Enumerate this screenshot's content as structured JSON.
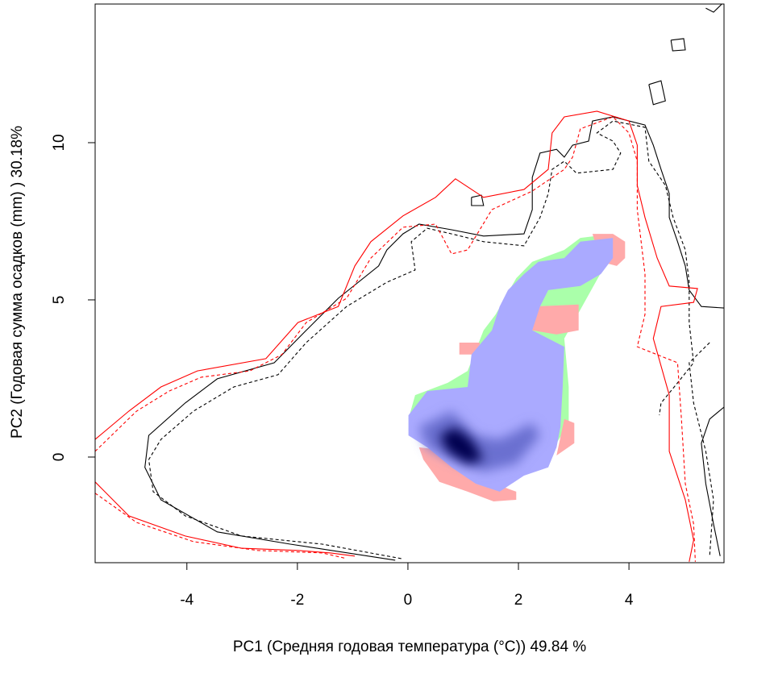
{
  "chart_data": {
    "type": "contour",
    "x_label": "PC1 (Средняя годовая температура (°C)) 49.84 %",
    "y_label": "PC2 (Годовая сумма осадков  (mm) ) 30.18%",
    "xlim": [
      -5.66,
      5.72
    ],
    "ylim": [
      -3.36,
      14.41
    ],
    "xticks": [
      -4,
      -2,
      0,
      2,
      4
    ],
    "yticks": [
      0,
      5,
      10
    ],
    "regions": [
      {
        "color": "#aaffaa",
        "x": [
          0.13,
          0.72,
          1.08,
          1.37,
          1.59,
          1.96,
          2.25,
          2.83,
          3.12,
          3.49,
          3.56,
          2.83,
          2.91,
          2.91,
          2.69,
          1.37,
          0.01
        ],
        "y": [
          1.97,
          2.36,
          2.74,
          4.03,
          4.54,
          5.69,
          6.21,
          6.59,
          6.97,
          7.05,
          6.08,
          3.77,
          2.23,
          1.08,
          0.44,
          0.18,
          1.21
        ]
      },
      {
        "color": "#ffaaaa",
        "x": [
          0.93,
          1.3,
          1.3,
          0.93
        ],
        "y": [
          3.64,
          3.64,
          3.26,
          3.26
        ]
      },
      {
        "color": "#ffaaaa",
        "x": [
          2.25,
          3.09,
          3.09,
          2.69,
          2.25
        ],
        "y": [
          4.79,
          4.85,
          4.03,
          3.9,
          4.03
        ]
      },
      {
        "color": "#ffaaaa",
        "x": [
          3.34,
          3.71,
          3.93,
          3.93,
          3.78,
          3.49
        ],
        "y": [
          7.1,
          7.1,
          6.85,
          6.33,
          6.08,
          6.21
        ]
      },
      {
        "color": "#ffaaaa",
        "x": [
          0.2,
          0.79,
          1.08,
          1.37,
          1.96,
          1.96,
          1.55,
          1.08,
          0.57,
          0.28
        ],
        "y": [
          0.31,
          0.18,
          -0.21,
          -0.72,
          -1.1,
          -1.36,
          -1.41,
          -1.1,
          -0.79,
          -0.08
        ]
      },
      {
        "color": "#ffaaaa",
        "x": [
          2.83,
          3.01,
          3.01,
          2.69
        ],
        "y": [
          1.21,
          1.08,
          0.44,
          0.05
        ]
      },
      {
        "color": "#aaaaff",
        "x": [
          0.01,
          0.35,
          1.08,
          1.15,
          1.52,
          1.66,
          1.81,
          2.1,
          2.36,
          2.83,
          3.12,
          3.71,
          3.71,
          3.49,
          3.12,
          2.54,
          2.39,
          2.25,
          2.83,
          2.8,
          2.76,
          2.69,
          2.54,
          2.1,
          1.66,
          1.23,
          0.79,
          0.35,
          0.01
        ],
        "y": [
          1.33,
          2.1,
          2.23,
          3.26,
          4.03,
          4.79,
          5.31,
          5.82,
          6.21,
          6.33,
          6.85,
          6.97,
          6.33,
          5.82,
          5.44,
          5.31,
          4.79,
          4.03,
          3.51,
          2.23,
          0.95,
          0.31,
          -0.33,
          -0.59,
          -1.1,
          -0.85,
          -0.33,
          0.31,
          0.69
        ]
      },
      {
        "color": "#6a6fd0",
        "blur": true,
        "x": [
          0.2,
          0.79,
          1.23,
          1.66,
          2.25,
          2.39,
          1.96,
          1.37,
          0.79,
          0.35
        ],
        "y": [
          0.95,
          1.46,
          0.69,
          0.56,
          1.08,
          0.69,
          -0.21,
          -0.46,
          -0.08,
          0.31
        ]
      },
      {
        "color": "#000050",
        "blur": true,
        "x": [
          0.57,
          0.86,
          1.15,
          1.37,
          1.08,
          0.72
        ],
        "y": [
          0.69,
          0.95,
          0.56,
          -0.08,
          -0.21,
          0.18
        ]
      }
    ],
    "series": [
      {
        "color": "#000000",
        "dash": false,
        "x": [
          -0.23,
          -2.13,
          -3.45,
          -4.47,
          -4.76,
          -4.69,
          -4.03,
          -3.45,
          -2.42,
          -1.84,
          -1.26,
          -0.53,
          -0.38,
          -0.09,
          0.2,
          0.79,
          1.37,
          2.1,
          2.25,
          2.25,
          2.39,
          2.69,
          2.83,
          2.98,
          3.27,
          3.34,
          3.71,
          4.29,
          4.44,
          4.58,
          4.73,
          4.73,
          4.88,
          5.02,
          5.09,
          5.31,
          5.72
        ],
        "y": [
          -3.28,
          -2.77,
          -2.38,
          -1.36,
          -0.33,
          0.69,
          1.72,
          2.49,
          3.0,
          4.03,
          5.05,
          6.08,
          6.59,
          7.1,
          7.41,
          7.23,
          7.03,
          7.1,
          7.87,
          8.9,
          9.67,
          9.79,
          9.54,
          9.92,
          10.05,
          10.69,
          10.82,
          10.56,
          9.92,
          9.15,
          8.38,
          7.62,
          6.85,
          6.08,
          5.31,
          4.79,
          4.74
        ]
      },
      {
        "color": "#000000",
        "dash": false,
        "x": [
          5.72,
          5.46,
          5.31,
          5.39,
          5.53,
          5.65
        ],
        "y": [
          1.59,
          1.21,
          0.44,
          -0.85,
          -2.13,
          -3.15
        ]
      },
      {
        "color": "#000000",
        "dash": false,
        "x": [
          4.36,
          4.58,
          4.66,
          4.44,
          4.36
        ],
        "y": [
          11.85,
          11.97,
          11.33,
          11.21,
          11.85
        ]
      },
      {
        "color": "#000000",
        "dash": false,
        "x": [
          4.76,
          4.99,
          5.02,
          4.79,
          4.76
        ],
        "y": [
          13.26,
          13.31,
          12.95,
          12.92,
          13.26
        ]
      },
      {
        "color": "#000000",
        "dash": false,
        "x": [
          5.39,
          5.53,
          5.68
        ],
        "y": [
          14.28,
          14.15,
          14.41
        ]
      },
      {
        "color": "#000000",
        "dash": false,
        "x": [
          1.15,
          1.33,
          1.37,
          1.15,
          1.15
        ],
        "y": [
          8.26,
          8.33,
          8.0,
          8.0,
          8.26
        ]
      },
      {
        "color": "#000000",
        "dash": true,
        "x": [
          -0.12,
          -1.55,
          -3.01,
          -4.03,
          -4.61,
          -4.69,
          -4.47,
          -3.88,
          -3.15,
          -2.35,
          -1.84,
          -1.11,
          -0.38,
          0.13,
          0.06,
          0.35,
          0.79,
          1.37,
          2.1,
          2.39,
          2.54,
          2.61,
          2.83,
          3.05,
          3.71,
          3.85,
          3.71,
          3.42,
          3.71,
          4.29,
          4.36,
          4.66,
          4.8,
          5.02,
          5.09,
          5.09,
          5.17,
          4.88,
          4.58,
          4.55
        ],
        "y": [
          -3.23,
          -2.77,
          -2.51,
          -1.87,
          -1.1,
          -0.08,
          0.56,
          1.46,
          2.23,
          2.62,
          3.64,
          4.79,
          5.56,
          5.95,
          6.85,
          7.28,
          7.1,
          6.85,
          6.72,
          7.62,
          8.38,
          9.15,
          9.41,
          9.03,
          9.15,
          9.67,
          10.05,
          10.31,
          10.69,
          10.49,
          9.41,
          8.64,
          7.62,
          6.59,
          5.56,
          4.28,
          3.0,
          2.36,
          1.72,
          1.33
        ]
      },
      {
        "color": "#000000",
        "dash": true,
        "x": [
          5.46,
          5.09,
          5.17,
          5.39,
          5.53,
          5.46
        ],
        "y": [
          3.64,
          3.0,
          1.72,
          0.18,
          -1.36,
          -3.15
        ]
      },
      {
        "color": "#ff0000",
        "dash": false,
        "x": [
          -5.66,
          -5.05,
          -4.47,
          -3.81,
          -2.57,
          -1.99,
          -1.26,
          -0.96,
          -0.67,
          -0.09,
          0.5,
          0.86,
          1.37,
          2.1,
          2.54,
          2.61,
          2.83,
          3.42,
          4.0,
          4.15,
          4.15,
          4.29,
          4.51,
          4.73,
          5.24,
          5.17,
          4.58,
          4.44,
          4.73,
          4.73,
          5.02,
          5.17,
          5.09
        ],
        "y": [
          0.56,
          1.46,
          2.23,
          2.74,
          3.13,
          4.28,
          4.79,
          6.08,
          6.85,
          7.67,
          8.26,
          8.85,
          8.26,
          8.51,
          9.15,
          10.31,
          10.82,
          11.0,
          10.69,
          9.92,
          8.64,
          7.62,
          6.33,
          5.44,
          5.36,
          4.92,
          4.79,
          3.77,
          1.97,
          0.18,
          -1.36,
          -2.64,
          -3.33
        ]
      },
      {
        "color": "#ff0000",
        "dash": false,
        "x": [
          -5.66,
          -5.05,
          -4.03,
          -3.01,
          -1.99,
          -1.4,
          -0.96
        ],
        "y": [
          -0.79,
          -1.87,
          -2.51,
          -2.9,
          -2.97,
          -3.05,
          -3.15
        ]
      },
      {
        "color": "#ff0000",
        "dash": true,
        "x": [
          -5.66,
          -4.91,
          -4.32,
          -3.74,
          -2.86,
          -2.28,
          -1.84,
          -1.11,
          -0.67,
          -0.09,
          0.5,
          0.79,
          1.08,
          1.52,
          2.25,
          2.83,
          2.98,
          3.12,
          3.71,
          4.0,
          4.15,
          4.15,
          4.22,
          4.29,
          4.29,
          4.15,
          4.88,
          4.95,
          5.02,
          5.17,
          5.2
        ],
        "y": [
          0.18,
          1.46,
          2.1,
          2.54,
          2.74,
          3.26,
          4.28,
          5.05,
          6.33,
          7.31,
          7.41,
          6.46,
          6.59,
          7.87,
          8.46,
          9.15,
          9.54,
          10.44,
          10.82,
          10.31,
          9.41,
          7.87,
          6.85,
          5.82,
          4.54,
          3.51,
          3.0,
          1.21,
          -0.85,
          -2.13,
          -3.33
        ]
      },
      {
        "color": "#ff0000",
        "dash": true,
        "x": [
          -5.66,
          -4.91,
          -3.88,
          -2.72,
          -1.55,
          -1.11
        ],
        "y": [
          -1.15,
          -2.08,
          -2.69,
          -2.97,
          -3.05,
          -3.23
        ]
      }
    ]
  }
}
